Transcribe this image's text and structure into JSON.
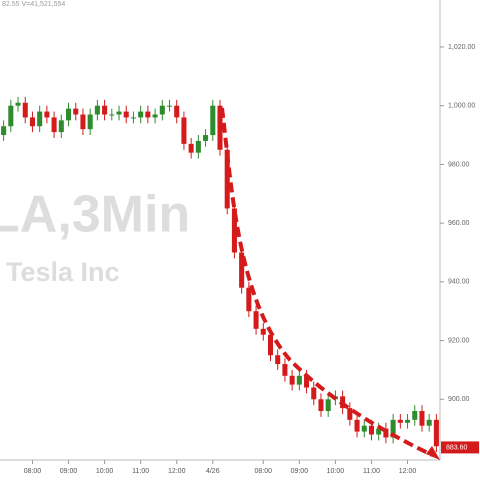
{
  "chart_data": {
    "type": "candlestick",
    "header": "82.55 V=41,521,554",
    "watermark_symbol": "LA,3Min",
    "watermark_name": "Tesla Inc",
    "categories": [
      null,
      null,
      null,
      null,
      "08:00",
      null,
      null,
      null,
      null,
      "09:00",
      null,
      null,
      null,
      null,
      "10:00",
      null,
      null,
      null,
      null,
      "11:00",
      null,
      null,
      null,
      null,
      "12:00",
      null,
      null,
      null,
      null,
      "4/26",
      null,
      null,
      null,
      null,
      null,
      null,
      "08:00",
      null,
      null,
      null,
      null,
      "09:00",
      null,
      null,
      null,
      null,
      "10:00",
      null,
      null,
      null,
      null,
      "11:00",
      null,
      null,
      null,
      null,
      "12:00",
      null,
      null,
      null,
      null
    ],
    "open": [
      990,
      993,
      1000,
      1001,
      996,
      993,
      998,
      996,
      991,
      995,
      999,
      997,
      992,
      997,
      1000,
      997,
      997,
      998,
      996,
      996,
      998,
      996,
      997,
      1000,
      1000,
      996,
      987,
      984,
      988,
      990,
      1000,
      985,
      965,
      950,
      938,
      930,
      924,
      922,
      915,
      912,
      908,
      905,
      908,
      904,
      900,
      896,
      900,
      901,
      897,
      893,
      889,
      891,
      888,
      890,
      887,
      893,
      892,
      893,
      896,
      891,
      893
    ],
    "high": [
      995,
      1002,
      1003,
      1003,
      998,
      1000,
      1000,
      998,
      997,
      1001,
      1001,
      999,
      999,
      1002,
      1002,
      999,
      1000,
      1000,
      998,
      1000,
      1000,
      999,
      1002,
      1002,
      1002,
      998,
      989,
      990,
      992,
      1002,
      1002,
      987,
      967,
      952,
      940,
      932,
      926,
      924,
      917,
      914,
      910,
      910,
      910,
      906,
      902,
      902,
      903,
      903,
      899,
      895,
      893,
      893,
      892,
      892,
      895,
      895,
      895,
      898,
      898,
      895,
      895
    ],
    "low": [
      988,
      991,
      998,
      994,
      991,
      991,
      994,
      989,
      989,
      993,
      995,
      990,
      990,
      995,
      995,
      995,
      995,
      994,
      994,
      994,
      994,
      994,
      995,
      998,
      994,
      985,
      982,
      982,
      986,
      988,
      983,
      963,
      948,
      936,
      928,
      922,
      920,
      913,
      910,
      906,
      903,
      903,
      902,
      898,
      894,
      894,
      898,
      895,
      891,
      887,
      887,
      886,
      886,
      885,
      885,
      890,
      890,
      891,
      889,
      889,
      882
    ],
    "close": [
      993,
      1000,
      1001,
      996,
      993,
      998,
      996,
      991,
      995,
      999,
      997,
      992,
      997,
      1000,
      997,
      997,
      998,
      996,
      996,
      998,
      996,
      997,
      1000,
      1000,
      996,
      987,
      984,
      988,
      990,
      1000,
      985,
      965,
      950,
      938,
      930,
      924,
      922,
      915,
      912,
      908,
      905,
      908,
      904,
      900,
      896,
      900,
      901,
      897,
      893,
      889,
      891,
      888,
      890,
      887,
      893,
      892,
      893,
      896,
      891,
      893,
      884
    ],
    "up_color": "#2e8b2e",
    "down_color": "#d41a1a",
    "ylim": [
      880,
      1036
    ],
    "yticks": [
      {
        "value": 900,
        "label": "900.00"
      },
      {
        "value": 920,
        "label": "920.00"
      },
      {
        "value": 940,
        "label": "940.00"
      },
      {
        "value": 960,
        "label": "960.00"
      },
      {
        "value": 980,
        "label": "980.00"
      },
      {
        "value": 1000,
        "label": "1,000.00"
      },
      {
        "value": 1020,
        "label": "1,020.00"
      }
    ],
    "last_price": {
      "value": 883.6,
      "label": "883.60"
    }
  }
}
